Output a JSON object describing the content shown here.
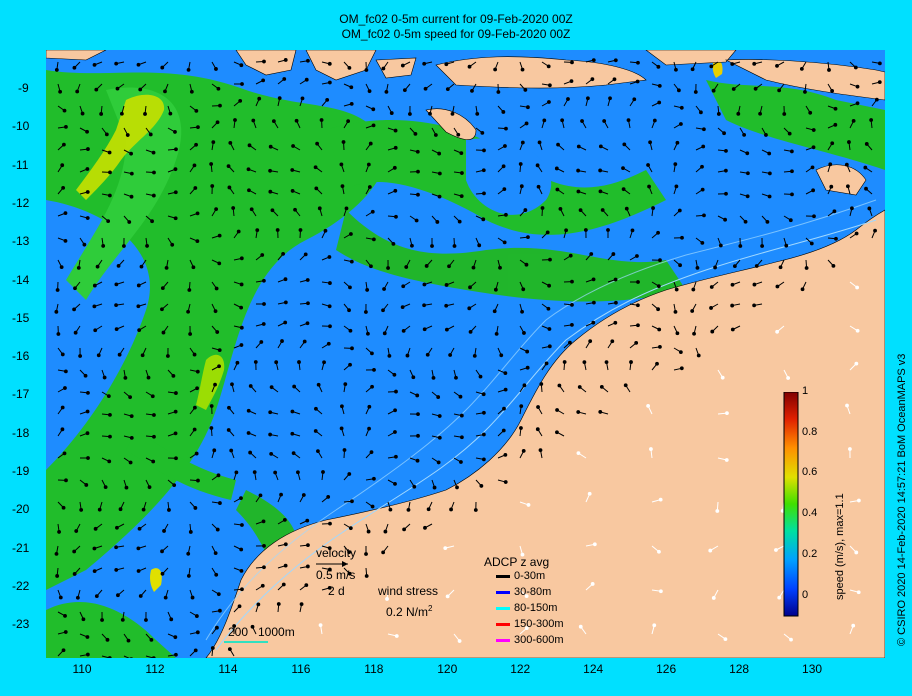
{
  "title_line1": "OM_fc02 0-5m current for 09-Feb-2020 00Z",
  "title_line2": "OM_fc02 0-5m speed for 09-Feb-2020 00Z",
  "credit": "© CSIRO 2020  14-Feb-2020 14:57:21 BoM OceanMAPS v3",
  "x_ticks": [
    "110",
    "112",
    "114",
    "116",
    "118",
    "120",
    "122",
    "124",
    "126",
    "128",
    "130"
  ],
  "y_ticks": [
    "-9",
    "-10",
    "-11",
    "-12",
    "-13",
    "-14",
    "-15",
    "-16",
    "-17",
    "-18",
    "-19",
    "-20",
    "-21",
    "-22",
    "-23"
  ],
  "colorbar": {
    "title": "speed (m/s), max=1.1",
    "ticks": [
      "1",
      "0.8",
      "0.6",
      "0.4",
      "0.2",
      "0"
    ]
  },
  "legend": {
    "velocity_label": "velocity",
    "velocity_scale": "0.5 m/s",
    "velocity_time": "2 d",
    "wind_label": "wind stress",
    "wind_scale_prefix": "0.2 N/m",
    "wind_scale_sup": "2",
    "depth_label_a": "200",
    "depth_label_b": "1000m",
    "adcp_title": "ADCP z avg",
    "adcp_items": [
      {
        "label": "0-30m",
        "color": "#000000"
      },
      {
        "label": "30-80m",
        "color": "#0000ff"
      },
      {
        "label": "80-150m",
        "color": "#00ffff"
      },
      {
        "label": "150-300m",
        "color": "#ff0000"
      },
      {
        "label": "300-600m",
        "color": "#ff00ff"
      }
    ]
  },
  "colors": {
    "land": "#f8c8a0",
    "background": "#00e0ff",
    "ocean_slow": "#1e8cff",
    "ocean_fast": "#18c818"
  }
}
